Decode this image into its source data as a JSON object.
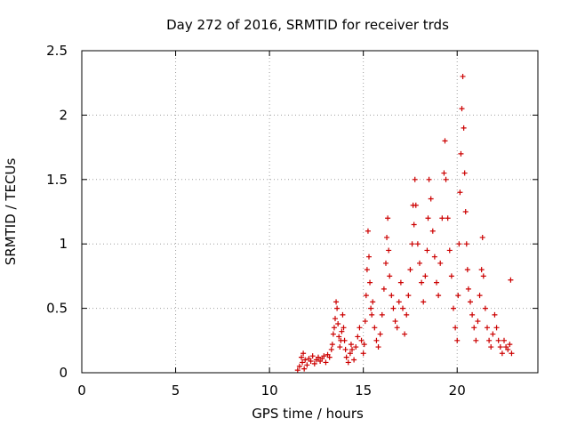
{
  "chart_data": {
    "type": "scatter",
    "title": "Day 272 of 2016, SRMTID for receiver trds",
    "xlabel": "GPS time / hours",
    "ylabel": "SRMTID / TECUs",
    "xlim": [
      0,
      24.3
    ],
    "ylim": [
      0,
      2.5
    ],
    "x_ticks": [
      0,
      5,
      10,
      15,
      20
    ],
    "y_ticks": [
      0,
      0.5,
      1,
      1.5,
      2,
      2.5
    ],
    "x_tick_labels": [
      "0",
      "5",
      "10",
      "15",
      "20"
    ],
    "y_tick_labels": [
      "0",
      "0.5",
      "1",
      "1.5",
      "2",
      "2.5"
    ],
    "grid": true,
    "marker": "plus",
    "marker_color": "#cc0000",
    "series": [
      {
        "points": [
          [
            11.5,
            0.02
          ],
          [
            11.6,
            0.05
          ],
          [
            11.7,
            0.12
          ],
          [
            11.75,
            0.08
          ],
          [
            11.8,
            0.15
          ],
          [
            11.85,
            0.03
          ],
          [
            11.9,
            0.1
          ],
          [
            12.0,
            0.06
          ],
          [
            12.1,
            0.11
          ],
          [
            12.2,
            0.09
          ],
          [
            12.3,
            0.13
          ],
          [
            12.4,
            0.07
          ],
          [
            12.5,
            0.1
          ],
          [
            12.6,
            0.12
          ],
          [
            12.7,
            0.09
          ],
          [
            12.8,
            0.11
          ],
          [
            12.9,
            0.13
          ],
          [
            13.0,
            0.08
          ],
          [
            13.1,
            0.14
          ],
          [
            13.2,
            0.12
          ],
          [
            13.3,
            0.18
          ],
          [
            13.35,
            0.22
          ],
          [
            13.4,
            0.3
          ],
          [
            13.45,
            0.35
          ],
          [
            13.5,
            0.42
          ],
          [
            13.55,
            0.55
          ],
          [
            13.6,
            0.5
          ],
          [
            13.65,
            0.38
          ],
          [
            13.7,
            0.28
          ],
          [
            13.75,
            0.2
          ],
          [
            13.8,
            0.25
          ],
          [
            13.85,
            0.32
          ],
          [
            13.9,
            0.45
          ],
          [
            13.95,
            0.35
          ],
          [
            14.0,
            0.25
          ],
          [
            14.05,
            0.18
          ],
          [
            14.1,
            0.12
          ],
          [
            14.2,
            0.08
          ],
          [
            14.3,
            0.15
          ],
          [
            14.35,
            0.22
          ],
          [
            14.4,
            0.18
          ],
          [
            14.5,
            0.1
          ],
          [
            14.6,
            0.2
          ],
          [
            14.7,
            0.28
          ],
          [
            14.8,
            0.35
          ],
          [
            14.9,
            0.25
          ],
          [
            15.0,
            0.15
          ],
          [
            15.05,
            0.22
          ],
          [
            15.1,
            0.4
          ],
          [
            15.15,
            0.6
          ],
          [
            15.2,
            0.8
          ],
          [
            15.25,
            1.1
          ],
          [
            15.3,
            0.9
          ],
          [
            15.35,
            0.7
          ],
          [
            15.4,
            0.5
          ],
          [
            15.45,
            0.45
          ],
          [
            15.5,
            0.55
          ],
          [
            15.6,
            0.35
          ],
          [
            15.7,
            0.25
          ],
          [
            15.8,
            0.2
          ],
          [
            15.9,
            0.3
          ],
          [
            16.0,
            0.45
          ],
          [
            16.1,
            0.65
          ],
          [
            16.2,
            0.85
          ],
          [
            16.25,
            1.05
          ],
          [
            16.3,
            1.2
          ],
          [
            16.35,
            0.95
          ],
          [
            16.4,
            0.75
          ],
          [
            16.5,
            0.6
          ],
          [
            16.6,
            0.5
          ],
          [
            16.7,
            0.4
          ],
          [
            16.8,
            0.35
          ],
          [
            16.9,
            0.55
          ],
          [
            17.0,
            0.7
          ],
          [
            17.1,
            0.5
          ],
          [
            17.2,
            0.3
          ],
          [
            17.3,
            0.45
          ],
          [
            17.4,
            0.6
          ],
          [
            17.5,
            0.8
          ],
          [
            17.6,
            1.0
          ],
          [
            17.65,
            1.3
          ],
          [
            17.7,
            1.15
          ],
          [
            17.75,
            1.5
          ],
          [
            17.8,
            1.3
          ],
          [
            17.9,
            1.0
          ],
          [
            18.0,
            0.85
          ],
          [
            18.1,
            0.7
          ],
          [
            18.2,
            0.55
          ],
          [
            18.3,
            0.75
          ],
          [
            18.4,
            0.95
          ],
          [
            18.45,
            1.2
          ],
          [
            18.5,
            1.5
          ],
          [
            18.6,
            1.35
          ],
          [
            18.7,
            1.1
          ],
          [
            18.8,
            0.9
          ],
          [
            18.9,
            0.7
          ],
          [
            19.0,
            0.6
          ],
          [
            19.1,
            0.85
          ],
          [
            19.2,
            1.2
          ],
          [
            19.3,
            1.55
          ],
          [
            19.35,
            1.8
          ],
          [
            19.4,
            1.5
          ],
          [
            19.5,
            1.2
          ],
          [
            19.6,
            0.95
          ],
          [
            19.7,
            0.75
          ],
          [
            19.8,
            0.5
          ],
          [
            19.9,
            0.35
          ],
          [
            20.0,
            0.25
          ],
          [
            20.05,
            0.6
          ],
          [
            20.1,
            1.0
          ],
          [
            20.15,
            1.4
          ],
          [
            20.2,
            1.7
          ],
          [
            20.25,
            2.05
          ],
          [
            20.3,
            2.3
          ],
          [
            20.35,
            1.9
          ],
          [
            20.4,
            1.55
          ],
          [
            20.45,
            1.25
          ],
          [
            20.5,
            1.0
          ],
          [
            20.55,
            0.8
          ],
          [
            20.6,
            0.65
          ],
          [
            20.7,
            0.55
          ],
          [
            20.8,
            0.45
          ],
          [
            20.9,
            0.35
          ],
          [
            21.0,
            0.25
          ],
          [
            21.1,
            0.4
          ],
          [
            21.2,
            0.6
          ],
          [
            21.3,
            0.8
          ],
          [
            21.35,
            1.05
          ],
          [
            21.4,
            0.75
          ],
          [
            21.5,
            0.5
          ],
          [
            21.6,
            0.35
          ],
          [
            21.7,
            0.25
          ],
          [
            21.8,
            0.2
          ],
          [
            21.9,
            0.3
          ],
          [
            22.0,
            0.45
          ],
          [
            22.1,
            0.35
          ],
          [
            22.2,
            0.25
          ],
          [
            22.3,
            0.2
          ],
          [
            22.4,
            0.15
          ],
          [
            22.5,
            0.25
          ],
          [
            22.6,
            0.2
          ],
          [
            22.7,
            0.18
          ],
          [
            22.8,
            0.22
          ],
          [
            22.85,
            0.72
          ],
          [
            22.9,
            0.15
          ]
        ]
      }
    ]
  }
}
